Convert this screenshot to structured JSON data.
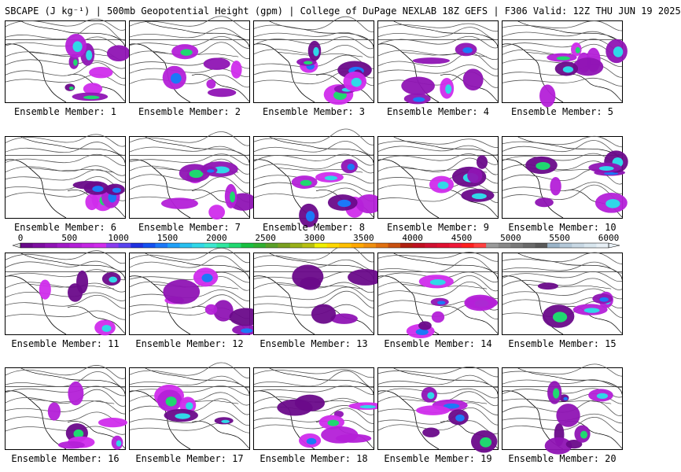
{
  "header": {
    "title": "SBCAPE (J kg⁻¹) | 500mb Geopotential Height (gpm) | College of DuPage NEXLAB 18Z GEFS | F306 Valid: 12Z THU JUN 19 2025"
  },
  "members": [
    {
      "label": "Ensemble Member: 1"
    },
    {
      "label": "Ensemble Member: 2"
    },
    {
      "label": "Ensemble Member: 3"
    },
    {
      "label": "Ensemble Member: 4"
    },
    {
      "label": "Ensemble Member: 5"
    },
    {
      "label": "Ensemble Member: 6"
    },
    {
      "label": "Ensemble Member: 7"
    },
    {
      "label": "Ensemble Member: 8"
    },
    {
      "label": "Ensemble Member: 9"
    },
    {
      "label": "Ensemble Member: 10"
    },
    {
      "label": "Ensemble Member: 11"
    },
    {
      "label": "Ensemble Member: 12"
    },
    {
      "label": "Ensemble Member: 13"
    },
    {
      "label": "Ensemble Member: 14"
    },
    {
      "label": "Ensemble Member: 15"
    },
    {
      "label": "Ensemble Member: 16"
    },
    {
      "label": "Ensemble Member: 17"
    },
    {
      "label": "Ensemble Member: 18"
    },
    {
      "label": "Ensemble Member: 19"
    },
    {
      "label": "Ensemble Member: 20"
    }
  ],
  "colorbar": {
    "ticks": [
      "0",
      "500",
      "1000",
      "1500",
      "2000",
      "2500",
      "3000",
      "3500",
      "4000",
      "4500",
      "5000",
      "5500",
      "6000"
    ],
    "colors": [
      "#6a0a8a",
      "#7d0fa0",
      "#8f14b4",
      "#a21ac8",
      "#b420d8",
      "#c426e4",
      "#d02cec",
      "#8a3cf0",
      "#5a44f0",
      "#2030e0",
      "#1450f0",
      "#1c78f8",
      "#20a0f8",
      "#28c0f0",
      "#30d8e8",
      "#3ce8d0",
      "#30e8a0",
      "#20d870",
      "#18c040",
      "#30b030",
      "#5aa028",
      "#7aa020",
      "#98b018",
      "#b8c010",
      "#f0f000",
      "#ffd800",
      "#ffc000",
      "#ffa800",
      "#f09010",
      "#e07010",
      "#c85010",
      "#b02010",
      "#c01020",
      "#d01030",
      "#e01030",
      "#f01838",
      "#ff2020",
      "#ff4040",
      "#9a9a9a",
      "#888888",
      "#7a7a7a",
      "#6a6a6a",
      "#5a5a5a",
      "#9ab4c8",
      "#b4c8d8",
      "#c8d8e4",
      "#d8e6ee",
      "#e8f0f6"
    ]
  }
}
